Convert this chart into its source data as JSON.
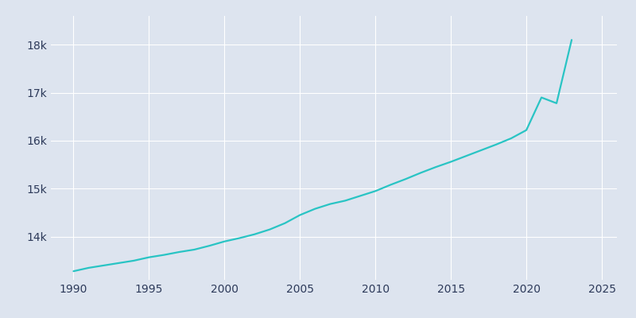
{
  "years": [
    1990,
    1991,
    1992,
    1993,
    1994,
    1995,
    1996,
    1997,
    1998,
    1999,
    2000,
    2001,
    2002,
    2003,
    2004,
    2005,
    2006,
    2007,
    2008,
    2009,
    2010,
    2011,
    2012,
    2013,
    2014,
    2015,
    2016,
    2017,
    2018,
    2019,
    2020,
    2021,
    2022,
    2023
  ],
  "population": [
    13280,
    13350,
    13400,
    13450,
    13500,
    13570,
    13620,
    13680,
    13730,
    13810,
    13900,
    13970,
    14050,
    14150,
    14280,
    14450,
    14580,
    14680,
    14750,
    14850,
    14950,
    15080,
    15200,
    15330,
    15450,
    15560,
    15680,
    15800,
    15920,
    16050,
    16220,
    16900,
    16780,
    18100
  ],
  "line_color": "#29c4c4",
  "bg_color": "#dde4ef",
  "grid_color": "#ffffff",
  "label_color": "#2d3a5a",
  "xlim": [
    1988.5,
    2026
  ],
  "ylim": [
    13100,
    18600
  ],
  "xticks": [
    1990,
    1995,
    2000,
    2005,
    2010,
    2015,
    2020,
    2025
  ],
  "ytick_values": [
    14000,
    15000,
    16000,
    17000,
    18000
  ],
  "ytick_labels": [
    "14k",
    "15k",
    "16k",
    "17k",
    "18k"
  ],
  "line_width": 1.6
}
